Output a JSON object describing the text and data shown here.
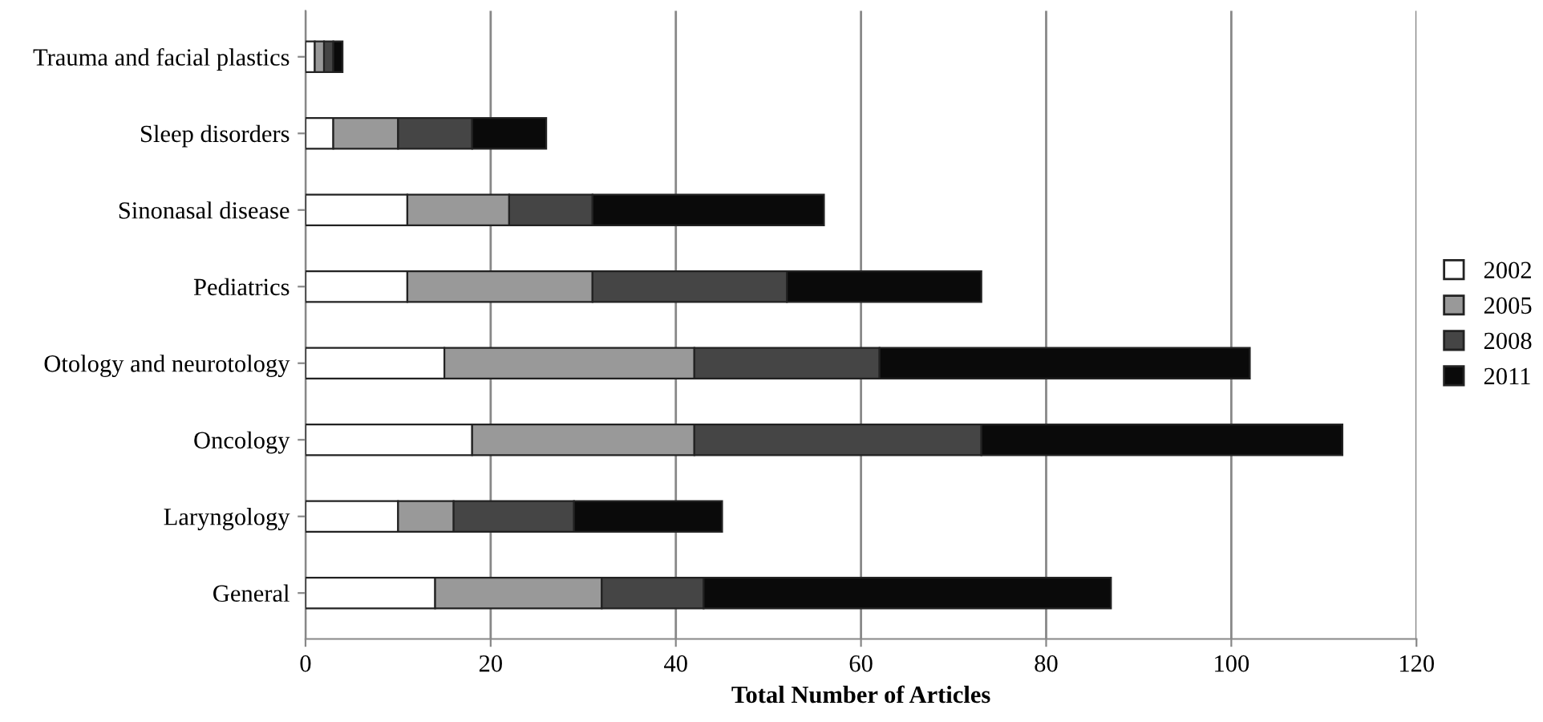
{
  "chart_data": {
    "type": "bar",
    "orientation": "horizontal",
    "stacked": true,
    "categories": [
      "Trauma and facial plastics",
      "Sleep disorders",
      "Sinonasal disease",
      "Pediatrics",
      "Otology and neurotology",
      "Oncology",
      "Laryngology",
      "General"
    ],
    "series": [
      {
        "name": "2002",
        "color": "#ffffff",
        "values": [
          1,
          3,
          11,
          11,
          15,
          18,
          10,
          14
        ]
      },
      {
        "name": "2005",
        "color": "#999999",
        "values": [
          1,
          7,
          11,
          20,
          27,
          24,
          6,
          18
        ]
      },
      {
        "name": "2008",
        "color": "#454545",
        "values": [
          1,
          8,
          9,
          21,
          20,
          31,
          13,
          11
        ]
      },
      {
        "name": "2011",
        "color": "#0a0a0a",
        "values": [
          1,
          8,
          25,
          21,
          40,
          39,
          16,
          44
        ]
      }
    ],
    "xlabel": "Total Number of Articles",
    "xlim": [
      0,
      120
    ],
    "xticks": [
      0,
      20,
      40,
      60,
      80,
      100,
      120
    ],
    "grid": "x",
    "legend": "right"
  }
}
